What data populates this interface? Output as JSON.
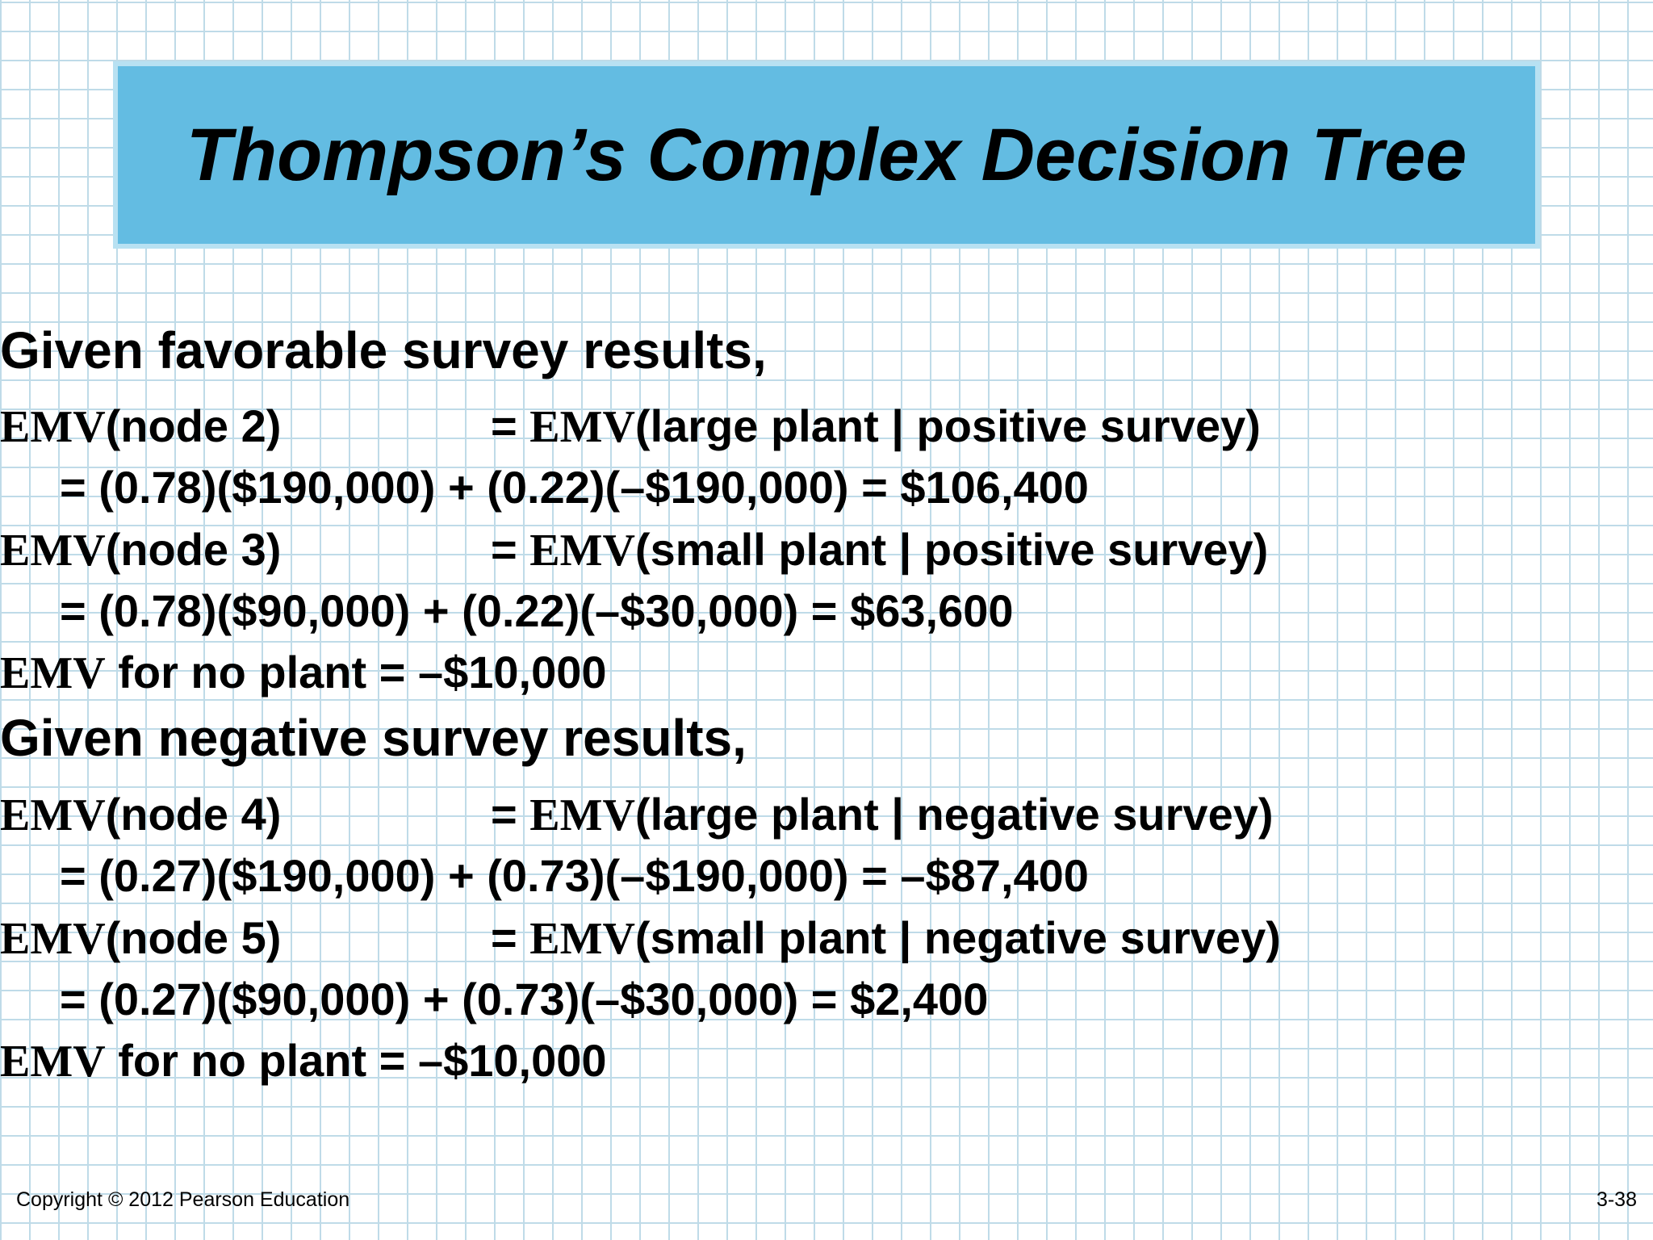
{
  "title": "Thompson’s Complex Decision Tree",
  "favorable": {
    "heading": "Given favorable survey results,",
    "node2": {
      "emv": "EMV",
      "label": "(node 2)",
      "equals": "= ",
      "rhs_emv": "EMV",
      "rhs": "(large plant | positive survey)",
      "calc": "= (0.78)($190,000) + (0.22)(–$190,000) = $106,400"
    },
    "node3": {
      "emv": "EMV",
      "label": "(node 3)",
      "equals": "= ",
      "rhs_emv": "EMV",
      "rhs": "(small plant | positive survey)",
      "calc": "= (0.78)($90,000) + (0.22)(–$30,000) = $63,600"
    },
    "no_plant": {
      "emv": "EMV",
      "text": " for no plant = –$10,000"
    }
  },
  "negative": {
    "heading": "Given negative survey results,",
    "node4": {
      "emv": "EMV",
      "label": "(node 4)",
      "equals": "= ",
      "rhs_emv": "EMV",
      "rhs": "(large plant | negative survey)",
      "calc": "= (0.27)($190,000) + (0.73)(–$190,000) = –$87,400"
    },
    "node5": {
      "emv": "EMV",
      "label": "(node 5)",
      "equals": "= ",
      "rhs_emv": "EMV",
      "rhs": "(small plant | negative survey)",
      "calc": "= (0.27)($90,000) + (0.73)(–$30,000) = $2,400"
    },
    "no_plant": {
      "emv": "EMV",
      "text": " for no plant = –$10,000"
    }
  },
  "footer": {
    "copyright": "Copyright © 2012 Pearson Education",
    "page": "3-38"
  },
  "colors": {
    "title_fill": "#63bce2",
    "title_border": "#b8e1f2",
    "grid": "#bfdbe8"
  }
}
